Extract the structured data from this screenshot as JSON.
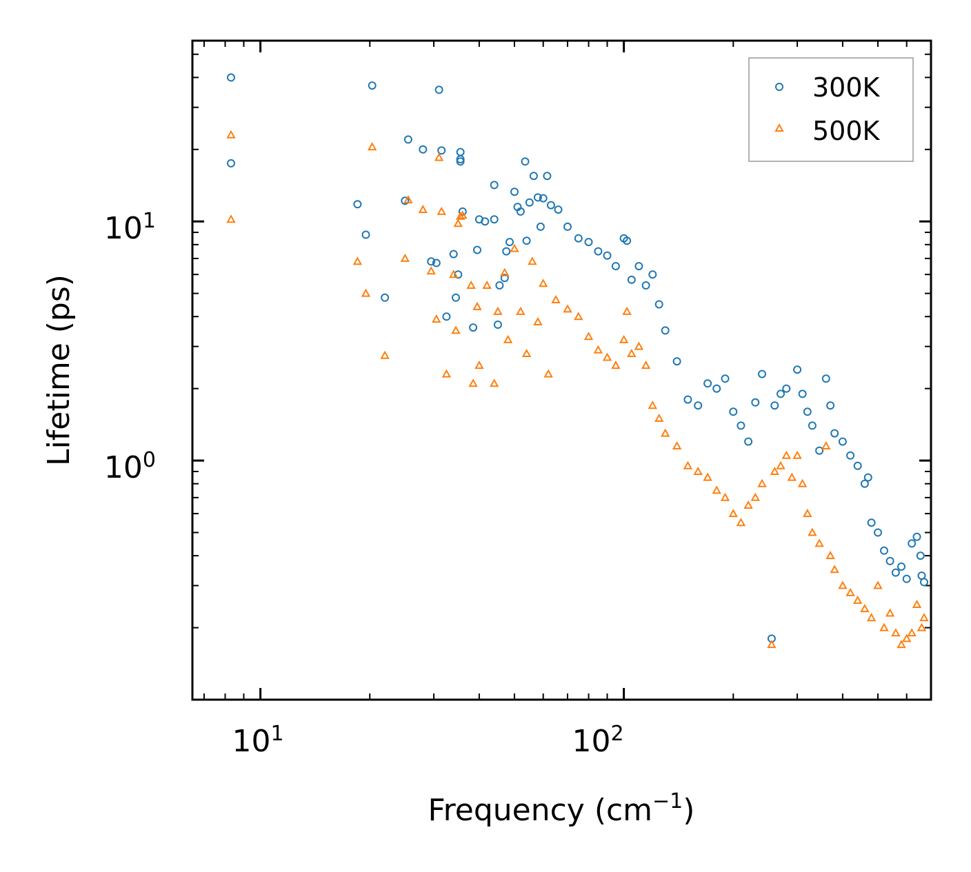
{
  "chart_data": {
    "type": "scatter",
    "xscale": "log",
    "yscale": "log",
    "xlim": [
      6.5,
      700
    ],
    "ylim": [
      0.1,
      57
    ],
    "xlabel": "Frequency (cm",
    "xlabel_sup": "−1",
    "xlabel_end": ")",
    "ylabel": "Lifetime (ps)",
    "x_ticks": [
      {
        "base": "10",
        "exp": "1",
        "value": 10
      },
      {
        "base": "10",
        "exp": "2",
        "value": 100
      }
    ],
    "y_ticks": [
      {
        "base": "10",
        "exp": "0",
        "value": 1
      },
      {
        "base": "10",
        "exp": "1",
        "value": 10
      }
    ],
    "legend": {
      "position": "top-right"
    },
    "series": [
      {
        "name": "300K",
        "marker": "circle",
        "color": "#1f77b4",
        "points": [
          [
            8.3,
            40
          ],
          [
            8.3,
            17.5
          ],
          [
            18.5,
            11.8
          ],
          [
            19.5,
            8.8
          ],
          [
            20.3,
            37
          ],
          [
            22,
            4.8
          ],
          [
            25,
            12.2
          ],
          [
            25.5,
            22
          ],
          [
            28,
            20
          ],
          [
            29.5,
            6.8
          ],
          [
            30.5,
            6.7
          ],
          [
            31,
            35.5
          ],
          [
            31.5,
            19.8
          ],
          [
            32.5,
            4
          ],
          [
            34,
            7.3
          ],
          [
            34.5,
            4.8
          ],
          [
            35,
            6
          ],
          [
            35.5,
            17.8
          ],
          [
            35.5,
            18.2
          ],
          [
            35.5,
            19.5
          ],
          [
            36,
            11
          ],
          [
            38.5,
            3.6
          ],
          [
            39.5,
            7.6
          ],
          [
            40,
            10.2
          ],
          [
            41.5,
            10
          ],
          [
            44,
            14.2
          ],
          [
            44,
            10.2
          ],
          [
            45,
            3.7
          ],
          [
            45.5,
            5.4
          ],
          [
            47,
            5.8
          ],
          [
            47.5,
            7.5
          ],
          [
            48.5,
            8.2
          ],
          [
            50,
            13.3
          ],
          [
            51,
            11.5
          ],
          [
            52,
            11
          ],
          [
            53.5,
            17.8
          ],
          [
            54,
            8.3
          ],
          [
            55,
            12
          ],
          [
            56.5,
            15.5
          ],
          [
            58,
            12.6
          ],
          [
            59,
            9.5
          ],
          [
            60,
            12.5
          ],
          [
            61.5,
            15.5
          ],
          [
            63,
            11.7
          ],
          [
            66,
            11.2
          ],
          [
            70,
            9.5
          ],
          [
            75,
            8.5
          ],
          [
            80,
            8.2
          ],
          [
            85,
            7.5
          ],
          [
            90,
            7.2
          ],
          [
            95,
            6.5
          ],
          [
            100,
            8.5
          ],
          [
            102,
            8.3
          ],
          [
            105,
            5.7
          ],
          [
            110,
            6.5
          ],
          [
            115,
            5.4
          ],
          [
            120,
            6
          ],
          [
            125,
            4.5
          ],
          [
            130,
            3.5
          ],
          [
            140,
            2.6
          ],
          [
            150,
            1.8
          ],
          [
            160,
            1.7
          ],
          [
            170,
            2.1
          ],
          [
            180,
            2
          ],
          [
            190,
            2.2
          ],
          [
            200,
            1.6
          ],
          [
            210,
            1.4
          ],
          [
            220,
            1.2
          ],
          [
            230,
            1.75
          ],
          [
            240,
            2.3
          ],
          [
            255,
            0.18
          ],
          [
            260,
            1.7
          ],
          [
            270,
            1.9
          ],
          [
            280,
            2
          ],
          [
            300,
            2.4
          ],
          [
            310,
            1.9
          ],
          [
            320,
            1.6
          ],
          [
            330,
            1.4
          ],
          [
            345,
            1.1
          ],
          [
            360,
            2.2
          ],
          [
            370,
            1.7
          ],
          [
            380,
            1.3
          ],
          [
            400,
            1.2
          ],
          [
            420,
            1.05
          ],
          [
            440,
            0.95
          ],
          [
            460,
            0.8
          ],
          [
            470,
            0.85
          ],
          [
            480,
            0.55
          ],
          [
            500,
            0.5
          ],
          [
            520,
            0.42
          ],
          [
            540,
            0.38
          ],
          [
            560,
            0.34
          ],
          [
            580,
            0.36
          ],
          [
            600,
            0.32
          ],
          [
            620,
            0.45
          ],
          [
            640,
            0.48
          ],
          [
            655,
            0.4
          ],
          [
            660,
            0.33
          ],
          [
            670,
            0.31
          ]
        ]
      },
      {
        "name": "500K",
        "marker": "triangle",
        "color": "#ff7f0e",
        "points": [
          [
            8.3,
            23
          ],
          [
            8.3,
            10.2
          ],
          [
            18.5,
            6.8
          ],
          [
            19.5,
            5
          ],
          [
            20.3,
            20.5
          ],
          [
            22,
            2.75
          ],
          [
            25,
            7
          ],
          [
            25.5,
            12.3
          ],
          [
            28,
            11.2
          ],
          [
            29.5,
            6.2
          ],
          [
            30.5,
            3.9
          ],
          [
            31,
            18.5
          ],
          [
            31.5,
            11
          ],
          [
            32.5,
            2.3
          ],
          [
            34,
            6
          ],
          [
            34.5,
            3.5
          ],
          [
            35,
            9.8
          ],
          [
            35.5,
            10.5
          ],
          [
            36,
            10.6
          ],
          [
            38,
            5.4
          ],
          [
            38.5,
            2.1
          ],
          [
            39.5,
            4.4
          ],
          [
            40,
            2.5
          ],
          [
            42,
            5.4
          ],
          [
            44,
            2.1
          ],
          [
            45,
            4.2
          ],
          [
            47,
            6.1
          ],
          [
            48,
            3.2
          ],
          [
            50,
            7.7
          ],
          [
            52,
            4.2
          ],
          [
            54,
            2.8
          ],
          [
            56,
            6.8
          ],
          [
            58,
            3.8
          ],
          [
            60,
            5.5
          ],
          [
            62,
            2.3
          ],
          [
            65,
            4.7
          ],
          [
            70,
            4.3
          ],
          [
            75,
            4
          ],
          [
            80,
            3.3
          ],
          [
            85,
            2.9
          ],
          [
            90,
            2.7
          ],
          [
            95,
            2.5
          ],
          [
            100,
            3.2
          ],
          [
            102,
            4.2
          ],
          [
            105,
            2.8
          ],
          [
            110,
            3
          ],
          [
            115,
            2.5
          ],
          [
            120,
            1.7
          ],
          [
            125,
            1.5
          ],
          [
            130,
            1.3
          ],
          [
            140,
            1.15
          ],
          [
            150,
            0.95
          ],
          [
            160,
            0.9
          ],
          [
            170,
            0.85
          ],
          [
            180,
            0.75
          ],
          [
            190,
            0.7
          ],
          [
            200,
            0.6
          ],
          [
            210,
            0.55
          ],
          [
            220,
            0.65
          ],
          [
            230,
            0.7
          ],
          [
            240,
            0.8
          ],
          [
            255,
            0.17
          ],
          [
            260,
            0.9
          ],
          [
            270,
            0.95
          ],
          [
            280,
            1.05
          ],
          [
            290,
            0.85
          ],
          [
            300,
            1.05
          ],
          [
            310,
            0.8
          ],
          [
            320,
            0.6
          ],
          [
            330,
            0.5
          ],
          [
            345,
            0.45
          ],
          [
            360,
            1.15
          ],
          [
            370,
            0.4
          ],
          [
            380,
            0.35
          ],
          [
            400,
            0.3
          ],
          [
            420,
            0.28
          ],
          [
            440,
            0.26
          ],
          [
            460,
            0.24
          ],
          [
            480,
            0.22
          ],
          [
            500,
            0.3
          ],
          [
            520,
            0.2
          ],
          [
            540,
            0.23
          ],
          [
            560,
            0.19
          ],
          [
            580,
            0.17
          ],
          [
            600,
            0.18
          ],
          [
            620,
            0.19
          ],
          [
            640,
            0.25
          ],
          [
            660,
            0.2
          ],
          [
            670,
            0.22
          ]
        ]
      }
    ]
  }
}
